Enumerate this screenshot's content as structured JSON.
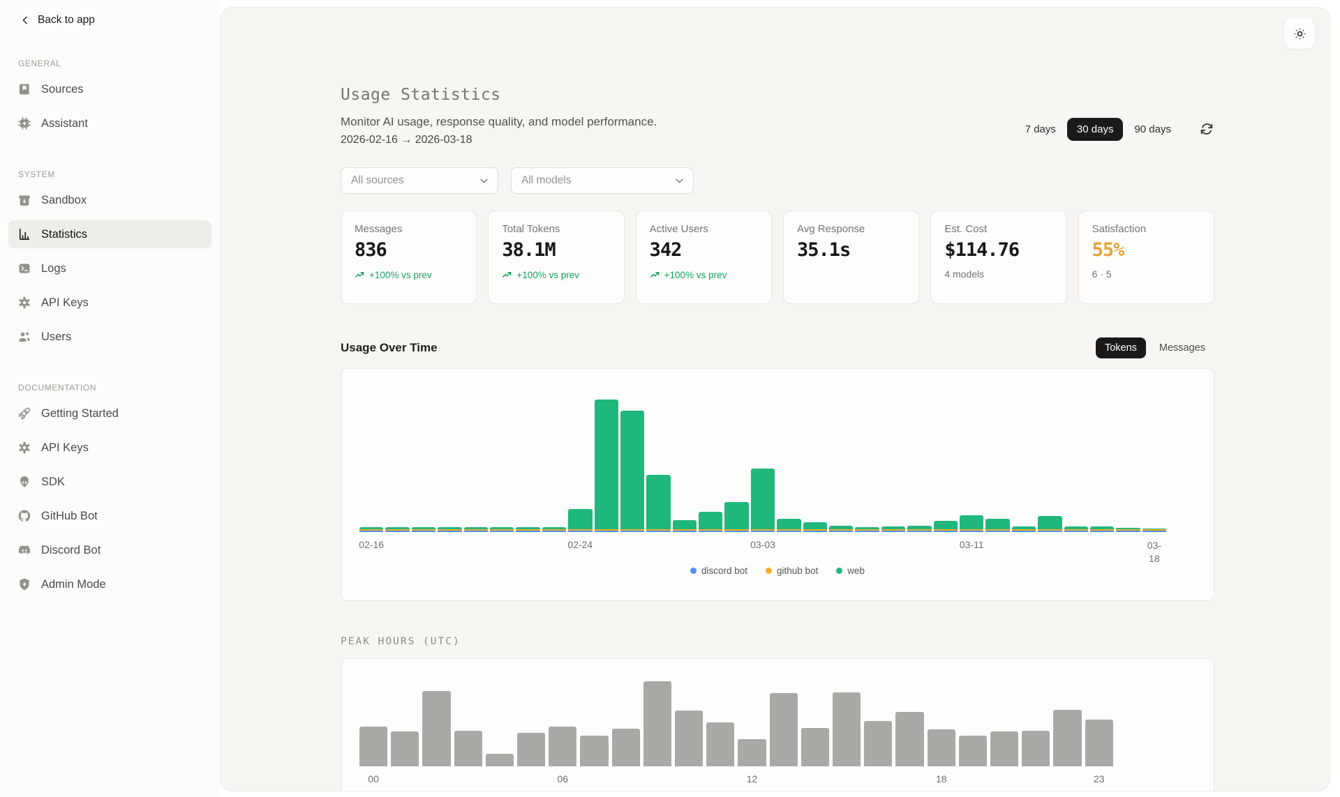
{
  "sidebar": {
    "back_label": "Back to app",
    "sections": [
      {
        "label": "GENERAL",
        "items": [
          {
            "label": "Sources",
            "icon": "book"
          },
          {
            "label": "Assistant",
            "icon": "chip"
          }
        ]
      },
      {
        "label": "SYSTEM",
        "items": [
          {
            "label": "Sandbox",
            "icon": "box"
          },
          {
            "label": "Statistics",
            "icon": "bar-chart",
            "active": true
          },
          {
            "label": "Logs",
            "icon": "terminal"
          },
          {
            "label": "API Keys",
            "icon": "gear"
          },
          {
            "label": "Users",
            "icon": "users"
          }
        ]
      },
      {
        "label": "DOCUMENTATION",
        "items": [
          {
            "label": "Getting Started",
            "icon": "rocket"
          },
          {
            "label": "API Keys",
            "icon": "gear"
          },
          {
            "label": "SDK",
            "icon": "package"
          },
          {
            "label": "GitHub Bot",
            "icon": "github"
          },
          {
            "label": "Discord Bot",
            "icon": "discord"
          },
          {
            "label": "Admin Mode",
            "icon": "shield"
          }
        ]
      }
    ]
  },
  "header": {
    "title": "Usage Statistics",
    "subtitle": "Monitor AI usage, response quality, and model performance.",
    "date_range": "2026-02-16 → 2026-03-18",
    "range_options": [
      "7 days",
      "30 days",
      "90 days"
    ],
    "active_range": "30 days"
  },
  "filters": {
    "source_select": "All sources",
    "model_select": "All models"
  },
  "stats": [
    {
      "label": "Messages",
      "value": "836",
      "trend": "+100% vs prev"
    },
    {
      "label": "Total Tokens",
      "value": "38.1M",
      "trend": "+100% vs prev"
    },
    {
      "label": "Active Users",
      "value": "342",
      "trend": "+100% vs prev"
    },
    {
      "label": "Avg Response",
      "value": "35.1s"
    },
    {
      "label": "Est. Cost",
      "value": "$114.76",
      "sub": "4 models"
    },
    {
      "label": "Satisfaction",
      "value": "55%",
      "sub": "6 · 5",
      "value_color": "#e8a23a"
    }
  ],
  "usage_section": {
    "title": "Usage Over Time",
    "toggles": [
      "Tokens",
      "Messages"
    ],
    "active_toggle": "Tokens"
  },
  "peak_section": {
    "title": "PEAK HOURS (UTC)"
  },
  "chart_data": [
    {
      "type": "bar",
      "stacked": true,
      "title": "Usage Over Time (Tokens)",
      "unit": "M tokens (estimated from bar heights)",
      "x": [
        "02-16",
        "02-17",
        "02-18",
        "02-19",
        "02-20",
        "02-21",
        "02-22",
        "02-23",
        "02-24",
        "02-25",
        "02-26",
        "02-27",
        "02-28",
        "03-01",
        "03-02",
        "03-03",
        "03-04",
        "03-05",
        "03-06",
        "03-07",
        "03-08",
        "03-09",
        "03-10",
        "03-11",
        "03-12",
        "03-13",
        "03-14",
        "03-15",
        "03-16",
        "03-17",
        "03-18"
      ],
      "x_ticks": [
        "02-16",
        "02-24",
        "03-03",
        "03-11",
        "03-18"
      ],
      "legend_position": "bottom",
      "grid": false,
      "series": [
        {
          "name": "discord bot",
          "color": "#4b8ef5",
          "values": [
            0.08,
            0.08,
            0.08,
            0.08,
            0.08,
            0.08,
            0.08,
            0.08,
            0.08,
            0.08,
            0.08,
            0.08,
            0.08,
            0.08,
            0.08,
            0.08,
            0.08,
            0.08,
            0.08,
            0.08,
            0.08,
            0.08,
            0.08,
            0.08,
            0.08,
            0.08,
            0.08,
            0.08,
            0.08,
            0.08,
            0.08
          ]
        },
        {
          "name": "github bot",
          "color": "#efae2b",
          "values": [
            0.08,
            0.08,
            0.08,
            0.08,
            0.08,
            0.08,
            0.08,
            0.08,
            0.08,
            0.08,
            0.08,
            0.08,
            0.08,
            0.08,
            0.08,
            0.08,
            0.08,
            0.08,
            0.08,
            0.08,
            0.08,
            0.08,
            0.08,
            0.08,
            0.08,
            0.08,
            0.08,
            0.08,
            0.08,
            0.08,
            0.08
          ]
        },
        {
          "name": "web",
          "color": "#1fb77c",
          "values": [
            0.14,
            0.14,
            0.14,
            0.14,
            0.14,
            0.14,
            0.14,
            0.14,
            1.3,
            8.1,
            7.4,
            3.4,
            0.6,
            1.1,
            1.7,
            3.8,
            0.65,
            0.45,
            0.25,
            0.15,
            0.2,
            0.25,
            0.55,
            0.9,
            0.65,
            0.2,
            0.85,
            0.2,
            0.2,
            0.1,
            0.08
          ]
        }
      ]
    },
    {
      "type": "bar",
      "title": "Peak Hours (UTC)",
      "unit": "relative message volume",
      "x": [
        "00",
        "01",
        "02",
        "03",
        "04",
        "05",
        "06",
        "07",
        "08",
        "09",
        "10",
        "11",
        "12",
        "13",
        "14",
        "15",
        "16",
        "17",
        "18",
        "19",
        "20",
        "21",
        "22",
        "23"
      ],
      "x_ticks": [
        "00",
        "06",
        "12",
        "18",
        "23"
      ],
      "bar_color": "#a9a9a5",
      "grid": false,
      "values": [
        48,
        42,
        90,
        43,
        15,
        40,
        48,
        37,
        45,
        102,
        67,
        53,
        33,
        88,
        46,
        89,
        54,
        65,
        44,
        37,
        42,
        43,
        68,
        56
      ]
    }
  ]
}
